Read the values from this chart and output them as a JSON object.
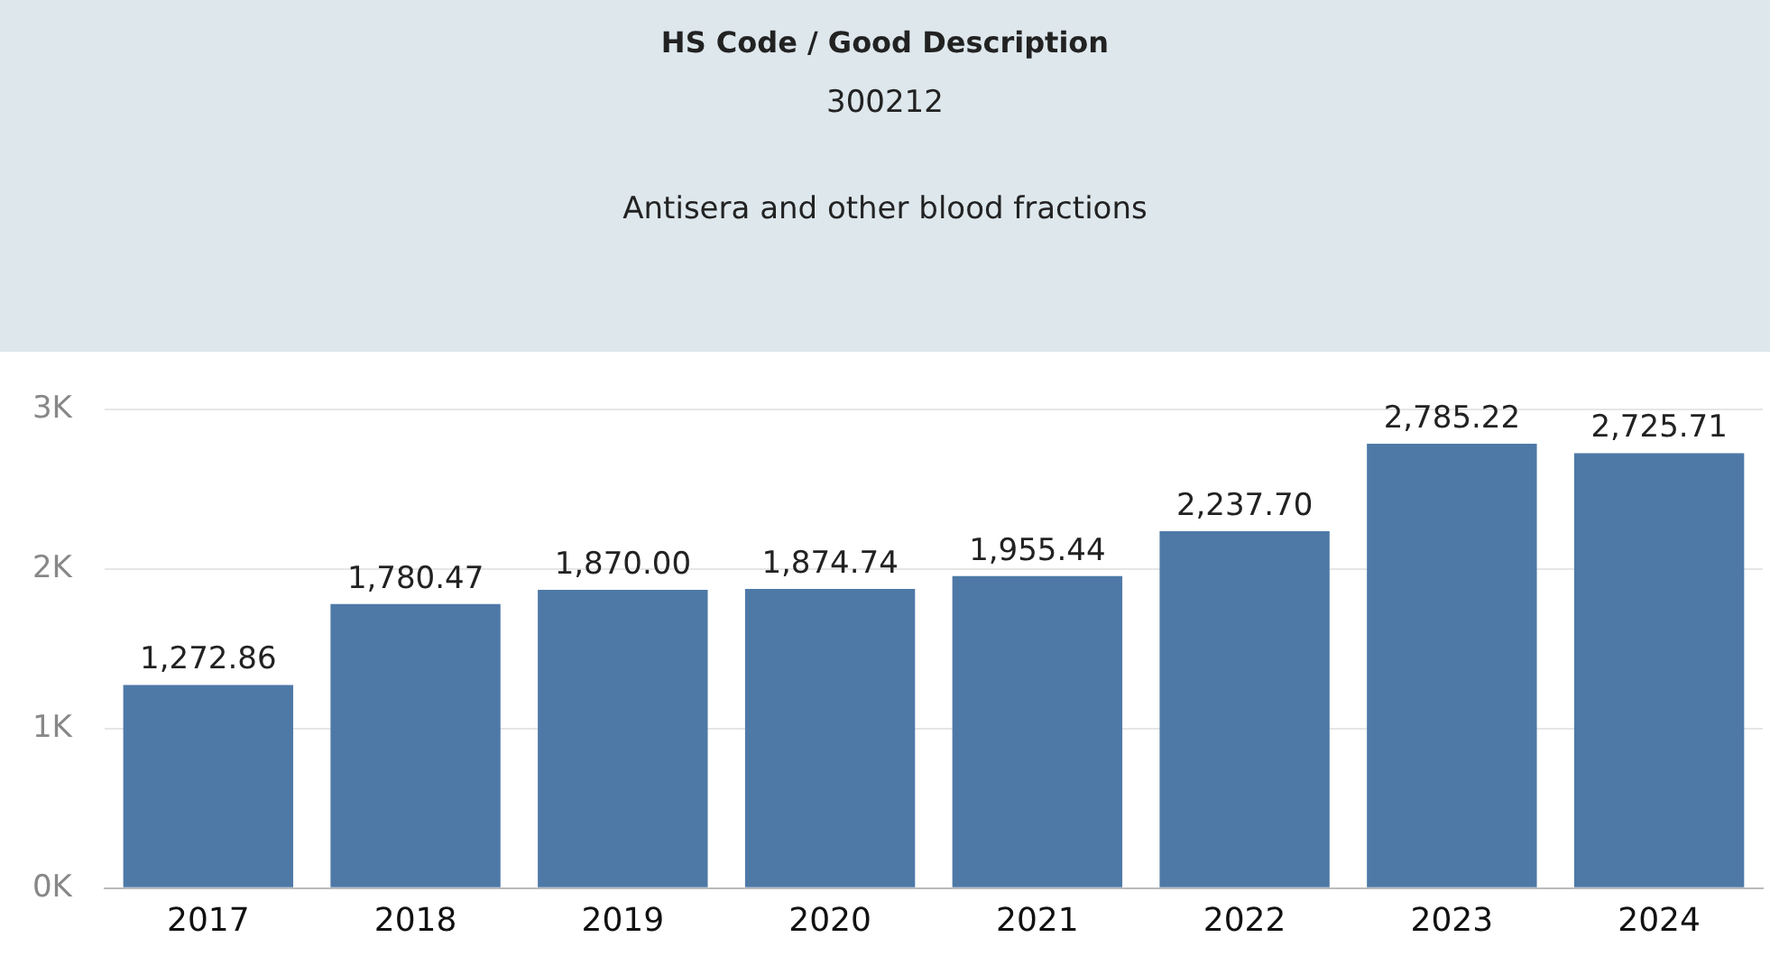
{
  "chart_data": {
    "type": "bar",
    "title": "HS Code / Good Description",
    "subtitle": "300212",
    "annotations": [
      "Antisera and other blood fractions"
    ],
    "categories": [
      "2017",
      "2018",
      "2019",
      "2020",
      "2021",
      "2022",
      "2023",
      "2024"
    ],
    "values": [
      1272.86,
      1780.47,
      1870.0,
      1874.74,
      1955.44,
      2237.7,
      2785.22,
      2725.71
    ],
    "value_labels": [
      "1,272.86",
      "1,780.47",
      "1,870.00",
      "1,874.74",
      "1,955.44",
      "2,237.70",
      "2,785.22",
      "2,725.71"
    ],
    "color": "#4e79a7",
    "ylim": [
      0,
      3000
    ],
    "yticks": [
      {
        "value": 0,
        "label": "0K"
      },
      {
        "value": 1000,
        "label": "1K"
      },
      {
        "value": 2000,
        "label": "2K"
      },
      {
        "value": 3000,
        "label": "3K"
      }
    ],
    "grid": "y",
    "legend": false
  }
}
